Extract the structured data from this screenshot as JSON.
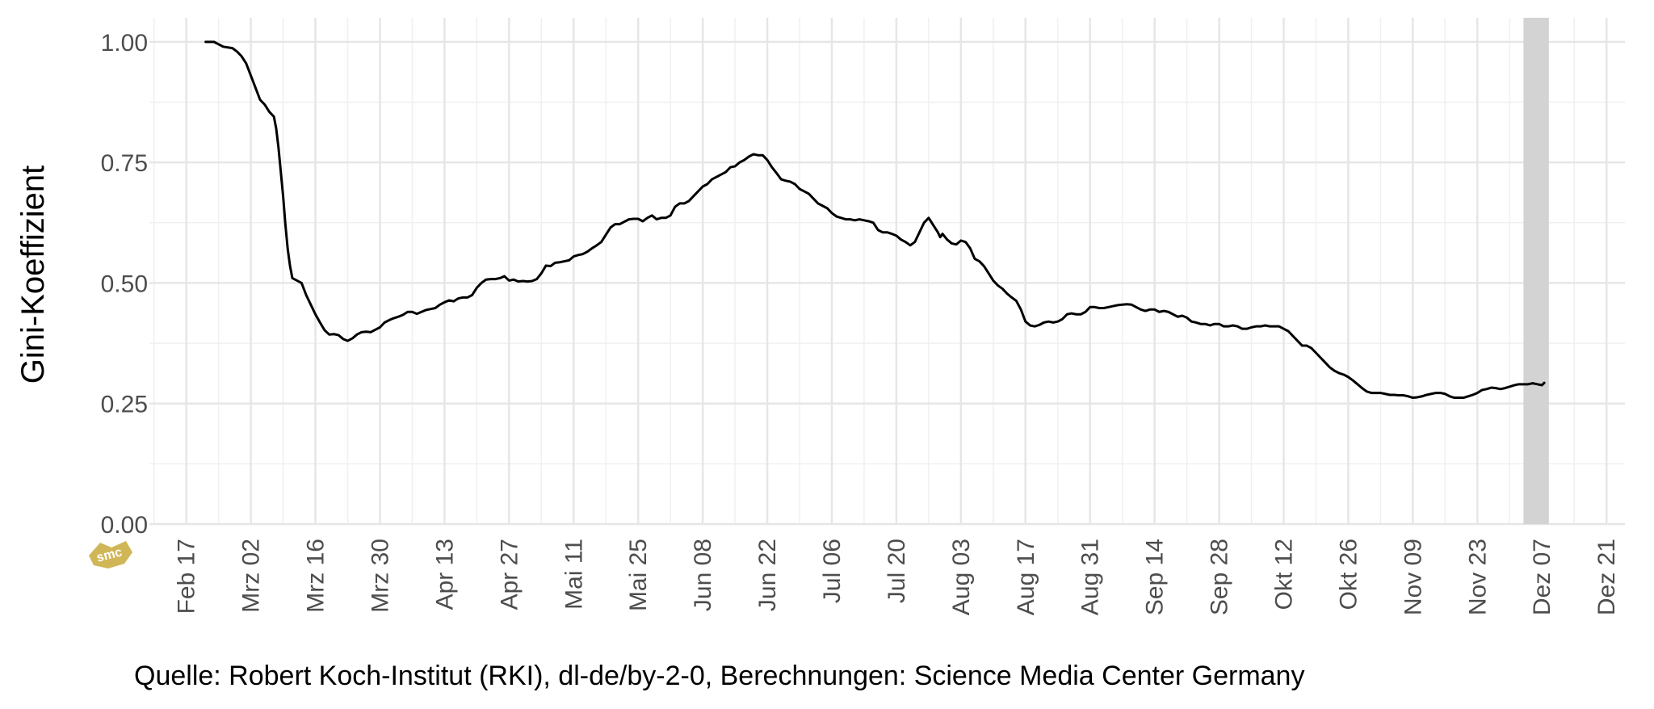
{
  "chart_data": {
    "type": "line",
    "title": "",
    "ylabel": "Gini-Koeffizient",
    "xlabel": "",
    "ylim": [
      0,
      1.05
    ],
    "yticks": [
      {
        "value": 0.0,
        "label": "0.00"
      },
      {
        "value": 0.25,
        "label": "0.25"
      },
      {
        "value": 0.5,
        "label": "0.50"
      },
      {
        "value": 0.75,
        "label": "0.75"
      },
      {
        "value": 1.0,
        "label": "1.00"
      }
    ],
    "x_unit": "day-of-year-2020",
    "xlim": [
      40,
      360
    ],
    "xticks": [
      {
        "day": 48,
        "label": "Feb 17"
      },
      {
        "day": 62,
        "label": "Mrz 02"
      },
      {
        "day": 76,
        "label": "Mrz 16"
      },
      {
        "day": 90,
        "label": "Mrz 30"
      },
      {
        "day": 104,
        "label": "Apr 13"
      },
      {
        "day": 118,
        "label": "Apr 27"
      },
      {
        "day": 132,
        "label": "Mai 11"
      },
      {
        "day": 146,
        "label": "Mai 25"
      },
      {
        "day": 160,
        "label": "Jun 08"
      },
      {
        "day": 174,
        "label": "Jun 22"
      },
      {
        "day": 188,
        "label": "Jul 06"
      },
      {
        "day": 202,
        "label": "Jul 20"
      },
      {
        "day": 216,
        "label": "Aug 03"
      },
      {
        "day": 230,
        "label": "Aug 17"
      },
      {
        "day": 244,
        "label": "Aug 31"
      },
      {
        "day": 258,
        "label": "Sep 14"
      },
      {
        "day": 272,
        "label": "Sep 28"
      },
      {
        "day": 286,
        "label": "Okt 12"
      },
      {
        "day": 300,
        "label": "Okt 26"
      },
      {
        "day": 314,
        "label": "Nov 09"
      },
      {
        "day": 328,
        "label": "Nov 23"
      },
      {
        "day": 342,
        "label": "Dez 07"
      },
      {
        "day": 356,
        "label": "Dez 21"
      }
    ],
    "shaded_band": {
      "from_day": 338,
      "to_day": 343.5,
      "color": "#d3d3d3"
    },
    "series": [
      {
        "color": "#000000",
        "points": [
          [
            52.2,
            1.0
          ],
          [
            54,
            1.0
          ],
          [
            55,
            0.995
          ],
          [
            56,
            0.99
          ],
          [
            58,
            0.987
          ],
          [
            59,
            0.98
          ],
          [
            60,
            0.97
          ],
          [
            61,
            0.955
          ],
          [
            62,
            0.93
          ],
          [
            63,
            0.905
          ],
          [
            64,
            0.88
          ],
          [
            65,
            0.87
          ],
          [
            66,
            0.855
          ],
          [
            67,
            0.845
          ],
          [
            67.5,
            0.82
          ],
          [
            68,
            0.78
          ],
          [
            68.5,
            0.73
          ],
          [
            69,
            0.68
          ],
          [
            69.5,
            0.62
          ],
          [
            70,
            0.57
          ],
          [
            70.5,
            0.535
          ],
          [
            71,
            0.51
          ],
          [
            72,
            0.505
          ],
          [
            73,
            0.5
          ],
          [
            74,
            0.475
          ],
          [
            75,
            0.455
          ],
          [
            76,
            0.435
          ],
          [
            77,
            0.418
          ],
          [
            78,
            0.402
          ],
          [
            79,
            0.393
          ],
          [
            80,
            0.394
          ],
          [
            81,
            0.392
          ],
          [
            82,
            0.384
          ],
          [
            83,
            0.38
          ],
          [
            84,
            0.385
          ],
          [
            85,
            0.393
          ],
          [
            86,
            0.398
          ],
          [
            87,
            0.399
          ],
          [
            88,
            0.398
          ],
          [
            89,
            0.403
          ],
          [
            90,
            0.408
          ],
          [
            91,
            0.418
          ],
          [
            92,
            0.423
          ],
          [
            93,
            0.427
          ],
          [
            94,
            0.43
          ],
          [
            95,
            0.434
          ],
          [
            96,
            0.44
          ],
          [
            97,
            0.44
          ],
          [
            98,
            0.436
          ],
          [
            99,
            0.44
          ],
          [
            100,
            0.444
          ],
          [
            101,
            0.446
          ],
          [
            102,
            0.448
          ],
          [
            103,
            0.455
          ],
          [
            104,
            0.46
          ],
          [
            105,
            0.464
          ],
          [
            106,
            0.462
          ],
          [
            107,
            0.468
          ],
          [
            108,
            0.47
          ],
          [
            109,
            0.47
          ],
          [
            110,
            0.475
          ],
          [
            111,
            0.49
          ],
          [
            112,
            0.5
          ],
          [
            113,
            0.507
          ],
          [
            114,
            0.508
          ],
          [
            115,
            0.508
          ],
          [
            116,
            0.51
          ],
          [
            117,
            0.514
          ],
          [
            118,
            0.505
          ],
          [
            119,
            0.507
          ],
          [
            120,
            0.503
          ],
          [
            121,
            0.504
          ],
          [
            122,
            0.503
          ],
          [
            123,
            0.504
          ],
          [
            124,
            0.508
          ],
          [
            125,
            0.52
          ],
          [
            126,
            0.536
          ],
          [
            127,
            0.535
          ],
          [
            128,
            0.542
          ],
          [
            129,
            0.543
          ],
          [
            130,
            0.545
          ],
          [
            131,
            0.547
          ],
          [
            132,
            0.555
          ],
          [
            133,
            0.558
          ],
          [
            134,
            0.56
          ],
          [
            135,
            0.565
          ],
          [
            136,
            0.572
          ],
          [
            137,
            0.578
          ],
          [
            138,
            0.585
          ],
          [
            139,
            0.6
          ],
          [
            140,
            0.615
          ],
          [
            141,
            0.622
          ],
          [
            142,
            0.622
          ],
          [
            143,
            0.627
          ],
          [
            144,
            0.632
          ],
          [
            145,
            0.633
          ],
          [
            146,
            0.633
          ],
          [
            147,
            0.628
          ],
          [
            148,
            0.635
          ],
          [
            149,
            0.64
          ],
          [
            150,
            0.632
          ],
          [
            151,
            0.635
          ],
          [
            152,
            0.635
          ],
          [
            153,
            0.64
          ],
          [
            154,
            0.658
          ],
          [
            155,
            0.665
          ],
          [
            156,
            0.665
          ],
          [
            157,
            0.67
          ],
          [
            158,
            0.68
          ],
          [
            159,
            0.69
          ],
          [
            160,
            0.7
          ],
          [
            161,
            0.705
          ],
          [
            162,
            0.715
          ],
          [
            163,
            0.72
          ],
          [
            164,
            0.725
          ],
          [
            165,
            0.73
          ],
          [
            166,
            0.74
          ],
          [
            167,
            0.742
          ],
          [
            168,
            0.75
          ],
          [
            169,
            0.755
          ],
          [
            170,
            0.762
          ],
          [
            171,
            0.767
          ],
          [
            172,
            0.765
          ],
          [
            173,
            0.765
          ],
          [
            174,
            0.755
          ],
          [
            175,
            0.74
          ],
          [
            176,
            0.728
          ],
          [
            177,
            0.715
          ],
          [
            178,
            0.712
          ],
          [
            179,
            0.71
          ],
          [
            180,
            0.705
          ],
          [
            181,
            0.695
          ],
          [
            182,
            0.69
          ],
          [
            183,
            0.685
          ],
          [
            184,
            0.675
          ],
          [
            185,
            0.665
          ],
          [
            186,
            0.66
          ],
          [
            187,
            0.655
          ],
          [
            188,
            0.645
          ],
          [
            189,
            0.638
          ],
          [
            190,
            0.635
          ],
          [
            191,
            0.632
          ],
          [
            192,
            0.632
          ],
          [
            193,
            0.63
          ],
          [
            194,
            0.632
          ],
          [
            195,
            0.63
          ],
          [
            196,
            0.628
          ],
          [
            197,
            0.625
          ],
          [
            198,
            0.61
          ],
          [
            199,
            0.605
          ],
          [
            200,
            0.605
          ],
          [
            201,
            0.602
          ],
          [
            202,
            0.598
          ],
          [
            203,
            0.59
          ],
          [
            204,
            0.585
          ],
          [
            205,
            0.578
          ],
          [
            206,
            0.585
          ],
          [
            207,
            0.605
          ],
          [
            208,
            0.625
          ],
          [
            209,
            0.635
          ],
          [
            210,
            0.62
          ],
          [
            211,
            0.605
          ],
          [
            211.5,
            0.595
          ],
          [
            212,
            0.602
          ],
          [
            213,
            0.59
          ],
          [
            214,
            0.582
          ],
          [
            215,
            0.58
          ],
          [
            216,
            0.588
          ],
          [
            217,
            0.585
          ],
          [
            218,
            0.572
          ],
          [
            219,
            0.55
          ],
          [
            220,
            0.545
          ],
          [
            221,
            0.535
          ],
          [
            222,
            0.52
          ],
          [
            223,
            0.505
          ],
          [
            224,
            0.495
          ],
          [
            225,
            0.488
          ],
          [
            226,
            0.478
          ],
          [
            227,
            0.47
          ],
          [
            228,
            0.463
          ],
          [
            229,
            0.445
          ],
          [
            230,
            0.42
          ],
          [
            231,
            0.412
          ],
          [
            232,
            0.41
          ],
          [
            233,
            0.413
          ],
          [
            234,
            0.418
          ],
          [
            235,
            0.42
          ],
          [
            236,
            0.418
          ],
          [
            237,
            0.42
          ],
          [
            238,
            0.425
          ],
          [
            239,
            0.435
          ],
          [
            240,
            0.437
          ],
          [
            241,
            0.435
          ],
          [
            242,
            0.435
          ],
          [
            243,
            0.44
          ],
          [
            244,
            0.45
          ],
          [
            245,
            0.45
          ],
          [
            246,
            0.448
          ],
          [
            247,
            0.448
          ],
          [
            248,
            0.45
          ],
          [
            249,
            0.452
          ],
          [
            250,
            0.454
          ],
          [
            251,
            0.455
          ],
          [
            252,
            0.456
          ],
          [
            253,
            0.455
          ],
          [
            254,
            0.45
          ],
          [
            255,
            0.445
          ],
          [
            256,
            0.442
          ],
          [
            257,
            0.445
          ],
          [
            258,
            0.445
          ],
          [
            259,
            0.44
          ],
          [
            260,
            0.442
          ],
          [
            261,
            0.44
          ],
          [
            262,
            0.435
          ],
          [
            263,
            0.43
          ],
          [
            264,
            0.432
          ],
          [
            265,
            0.428
          ],
          [
            266,
            0.42
          ],
          [
            267,
            0.418
          ],
          [
            268,
            0.415
          ],
          [
            269,
            0.415
          ],
          [
            270,
            0.412
          ],
          [
            271,
            0.415
          ],
          [
            272,
            0.415
          ],
          [
            273,
            0.41
          ],
          [
            274,
            0.41
          ],
          [
            275,
            0.412
          ],
          [
            276,
            0.41
          ],
          [
            277,
            0.405
          ],
          [
            278,
            0.405
          ],
          [
            279,
            0.408
          ],
          [
            280,
            0.41
          ],
          [
            281,
            0.41
          ],
          [
            282,
            0.412
          ],
          [
            283,
            0.41
          ],
          [
            284,
            0.41
          ],
          [
            285,
            0.41
          ],
          [
            286,
            0.405
          ],
          [
            287,
            0.4
          ],
          [
            288,
            0.39
          ],
          [
            289,
            0.38
          ],
          [
            290,
            0.37
          ],
          [
            291,
            0.37
          ],
          [
            292,
            0.365
          ],
          [
            293,
            0.355
          ],
          [
            294,
            0.345
          ],
          [
            295,
            0.335
          ],
          [
            296,
            0.325
          ],
          [
            297,
            0.318
          ],
          [
            298,
            0.313
          ],
          [
            299,
            0.31
          ],
          [
            300,
            0.305
          ],
          [
            301,
            0.298
          ],
          [
            302,
            0.29
          ],
          [
            303,
            0.282
          ],
          [
            304,
            0.275
          ],
          [
            305,
            0.272
          ],
          [
            306,
            0.272
          ],
          [
            307,
            0.272
          ],
          [
            308,
            0.27
          ],
          [
            309,
            0.268
          ],
          [
            310,
            0.268
          ],
          [
            311,
            0.267
          ],
          [
            312,
            0.267
          ],
          [
            313,
            0.265
          ],
          [
            314,
            0.262
          ],
          [
            315,
            0.263
          ],
          [
            316,
            0.265
          ],
          [
            317,
            0.268
          ],
          [
            318,
            0.27
          ],
          [
            319,
            0.272
          ],
          [
            320,
            0.272
          ],
          [
            321,
            0.27
          ],
          [
            322,
            0.265
          ],
          [
            323,
            0.262
          ],
          [
            324,
            0.262
          ],
          [
            325,
            0.262
          ],
          [
            326,
            0.265
          ],
          [
            327,
            0.268
          ],
          [
            328,
            0.272
          ],
          [
            329,
            0.278
          ],
          [
            330,
            0.28
          ],
          [
            331,
            0.283
          ],
          [
            332,
            0.282
          ],
          [
            333,
            0.28
          ],
          [
            334,
            0.282
          ],
          [
            335,
            0.285
          ],
          [
            336,
            0.288
          ],
          [
            337,
            0.29
          ],
          [
            338,
            0.29
          ],
          [
            339,
            0.29
          ],
          [
            340,
            0.292
          ],
          [
            341,
            0.29
          ],
          [
            342,
            0.288
          ],
          [
            342.5,
            0.293
          ]
        ]
      }
    ],
    "grid": true
  },
  "caption": "Quelle: Robert Koch-Institut (RKI), dl-de/by-2-0, Berechnungen: Science Media Center Germany",
  "logo": {
    "text": "smc",
    "color": "#c8a93a"
  }
}
